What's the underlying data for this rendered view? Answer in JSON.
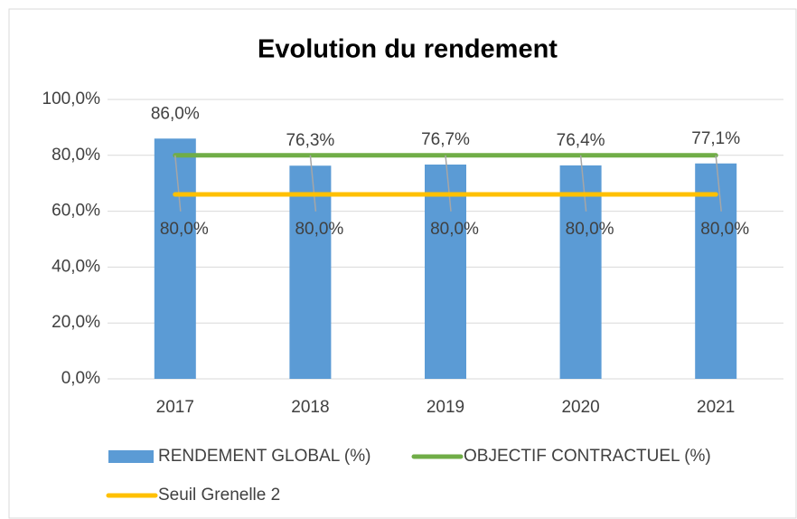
{
  "chart_data": {
    "type": "bar",
    "title": "Evolution du rendement",
    "categories": [
      "2017",
      "2018",
      "2019",
      "2020",
      "2021"
    ],
    "series": [
      {
        "name": "RENDEMENT GLOBAL (%)",
        "type": "bar",
        "color": "#5b9bd5",
        "values": [
          86.0,
          76.3,
          76.7,
          76.4,
          77.1
        ],
        "value_labels": [
          "86,0%",
          "76,3%",
          "76,7%",
          "76,4%",
          "77,1%"
        ]
      },
      {
        "name": "OBJECTIF CONTRACTUEL (%)",
        "type": "line",
        "color": "#70ad47",
        "values": [
          80,
          80,
          80,
          80,
          80
        ],
        "value_labels": [
          "80,0%",
          "80,0%",
          "80,0%",
          "80,0%",
          "80,0%"
        ]
      },
      {
        "name": "Seuil Grenelle 2",
        "type": "line",
        "color": "#ffc000",
        "values": [
          66,
          66,
          66,
          66,
          66
        ]
      }
    ],
    "ylim": [
      0,
      100
    ],
    "yticks": [
      {
        "value": 0,
        "label": "0,0%"
      },
      {
        "value": 20,
        "label": "20,0%"
      },
      {
        "value": 40,
        "label": "40,0%"
      },
      {
        "value": 60,
        "label": "60,0%"
      },
      {
        "value": 80,
        "label": "80,0%"
      },
      {
        "value": 100,
        "label": "100,0%"
      }
    ],
    "grid": true,
    "legend": "bottom"
  }
}
